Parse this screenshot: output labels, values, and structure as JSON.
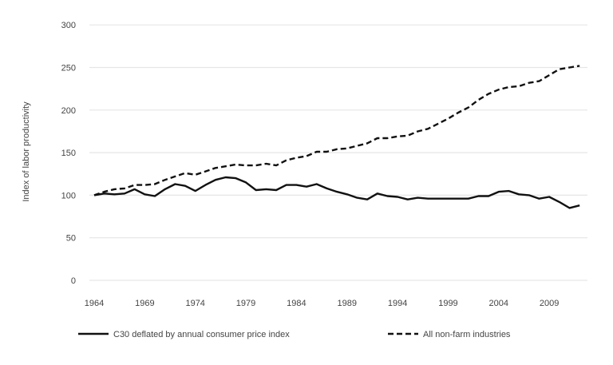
{
  "chart_data": {
    "type": "line",
    "title": "",
    "xlabel": "",
    "ylabel": "Index of labor productivity",
    "ylim": [
      0,
      300
    ],
    "yticks": [
      0,
      50,
      100,
      150,
      200,
      250,
      300
    ],
    "xlim": [
      1964,
      2012
    ],
    "xticks": [
      1964,
      1969,
      1974,
      1979,
      1984,
      1989,
      1994,
      1999,
      2004,
      2009
    ],
    "grid": true,
    "legend_placement": "bottom",
    "x": [
      1964,
      1965,
      1966,
      1967,
      1968,
      1969,
      1970,
      1971,
      1972,
      1973,
      1974,
      1975,
      1976,
      1977,
      1978,
      1979,
      1980,
      1981,
      1982,
      1983,
      1984,
      1985,
      1986,
      1987,
      1988,
      1989,
      1990,
      1991,
      1992,
      1993,
      1994,
      1995,
      1996,
      1997,
      1998,
      1999,
      2000,
      2001,
      2002,
      2003,
      2004,
      2005,
      2006,
      2007,
      2008,
      2009,
      2010,
      2011,
      2012
    ],
    "series": [
      {
        "name": "C30 deflated by annual consumer price index",
        "style": "solid",
        "color": "#111111",
        "values": [
          100,
          102,
          101,
          102,
          107,
          101,
          99,
          107,
          113,
          111,
          105,
          112,
          118,
          121,
          120,
          115,
          106,
          107,
          106,
          112,
          112,
          110,
          113,
          108,
          104,
          101,
          97,
          95,
          102,
          99,
          98,
          95,
          97,
          96,
          96,
          96,
          96,
          96,
          99,
          99,
          104,
          105,
          101,
          100,
          96,
          98,
          92,
          85,
          88
        ]
      },
      {
        "name": "All non-farm industries",
        "style": "dashed",
        "color": "#111111",
        "values": [
          100,
          104,
          107,
          108,
          112,
          112,
          113,
          118,
          122,
          126,
          124,
          128,
          132,
          134,
          136,
          135,
          135,
          137,
          135,
          141,
          144,
          146,
          151,
          151,
          154,
          155,
          158,
          161,
          167,
          167,
          169,
          170,
          175,
          178,
          184,
          190,
          197,
          203,
          212,
          219,
          224,
          227,
          228,
          232,
          234,
          241,
          248,
          250,
          252
        ]
      }
    ]
  }
}
